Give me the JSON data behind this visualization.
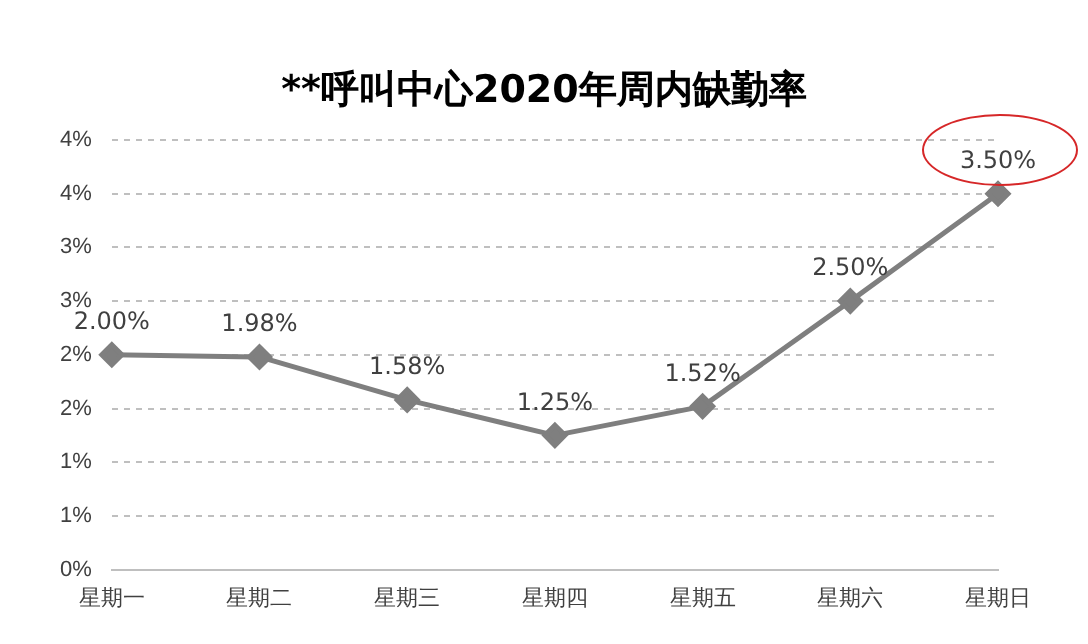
{
  "chart_data": {
    "type": "line",
    "title": "**呼叫中心2020年周内缺勤率",
    "categories": [
      "星期一",
      "星期二",
      "星期三",
      "星期四",
      "星期五",
      "星期六",
      "星期日"
    ],
    "series": [
      {
        "color": "#7f7f7f",
        "values": [
          2.0,
          1.98,
          1.58,
          1.25,
          1.52,
          2.5,
          3.5
        ],
        "value_labels": [
          "2.00%",
          "1.98%",
          "1.58%",
          "1.25%",
          "1.52%",
          "2.50%",
          "3.50%"
        ]
      }
    ],
    "ylim": [
      0,
      4
    ],
    "yticks": [
      {
        "value": 0,
        "label": "0%"
      },
      {
        "value": 0.5,
        "label": "1%"
      },
      {
        "value": 1,
        "label": "1%"
      },
      {
        "value": 1.5,
        "label": "2%"
      },
      {
        "value": 2,
        "label": "2%"
      },
      {
        "value": 2.5,
        "label": "3%"
      },
      {
        "value": 3,
        "label": "3%"
      },
      {
        "value": 3.5,
        "label": "4%"
      },
      {
        "value": 4,
        "label": "4%"
      }
    ],
    "grid": "y",
    "legend": false,
    "marker": "diamond",
    "line_style": "solid"
  }
}
